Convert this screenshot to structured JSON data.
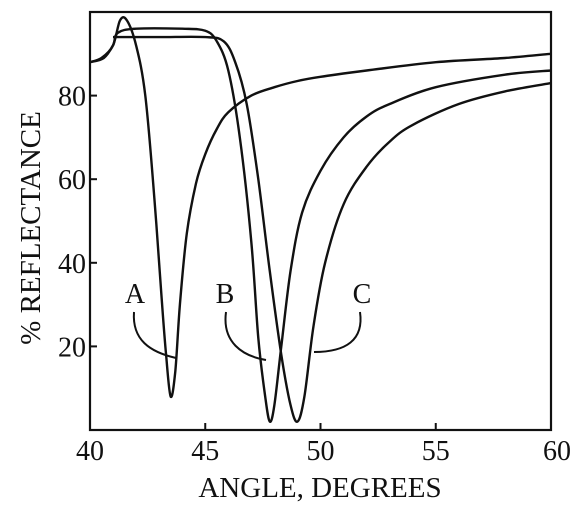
{
  "chart_data": {
    "type": "line",
    "title": "",
    "xlabel": "ANGLE, DEGREES",
    "ylabel": "% REFLECTANCE",
    "xlim": [
      40,
      60
    ],
    "ylim": [
      0,
      100
    ],
    "x_ticks": [
      "40",
      "45",
      "50",
      "55",
      "60"
    ],
    "y_ticks": [
      "20",
      "40",
      "60",
      "80"
    ],
    "grid": false,
    "legend": "none",
    "line_color": "#111111",
    "series": [
      {
        "name": "A",
        "x": [
          40,
          40.5,
          41,
          41.3,
          41.6,
          42,
          42.4,
          42.8,
          43.1,
          43.3,
          43.5,
          43.7,
          43.9,
          44.2,
          44.6,
          45,
          45.5,
          46,
          47,
          48,
          49,
          50,
          52,
          55,
          58,
          60
        ],
        "y": [
          88,
          89,
          92,
          98,
          98,
          92,
          80,
          55,
          32,
          18,
          8,
          14,
          30,
          47,
          59,
          66,
          72,
          76,
          80,
          82,
          83.5,
          84.5,
          86,
          88,
          89,
          90
        ]
      },
      {
        "name": "B",
        "x": [
          40,
          40.6,
          41,
          41.2,
          42,
          44,
          45,
          45.5,
          46,
          46.5,
          47,
          47.3,
          47.6,
          47.8,
          48,
          48.3,
          48.7,
          49.2,
          50,
          51,
          52,
          53,
          55,
          58,
          60
        ],
        "y": [
          88,
          89,
          92,
          95,
          96,
          96,
          95.5,
          93,
          86,
          70,
          45,
          22,
          8,
          2,
          6,
          20,
          38,
          52,
          62,
          70,
          75,
          78,
          82,
          85,
          86
        ]
      },
      {
        "name": "C",
        "x": [
          41,
          43,
          45,
          45.8,
          46.3,
          46.8,
          47.3,
          47.8,
          48.3,
          48.7,
          49,
          49.3,
          49.7,
          50.2,
          51,
          52,
          53,
          54,
          56,
          58,
          60
        ],
        "y": [
          94,
          94,
          94,
          93,
          88,
          78,
          60,
          38,
          18,
          6,
          2,
          8,
          25,
          40,
          54,
          63,
          69,
          73,
          78,
          81,
          83
        ]
      }
    ],
    "annotations": [
      "A",
      "B",
      "C"
    ]
  }
}
